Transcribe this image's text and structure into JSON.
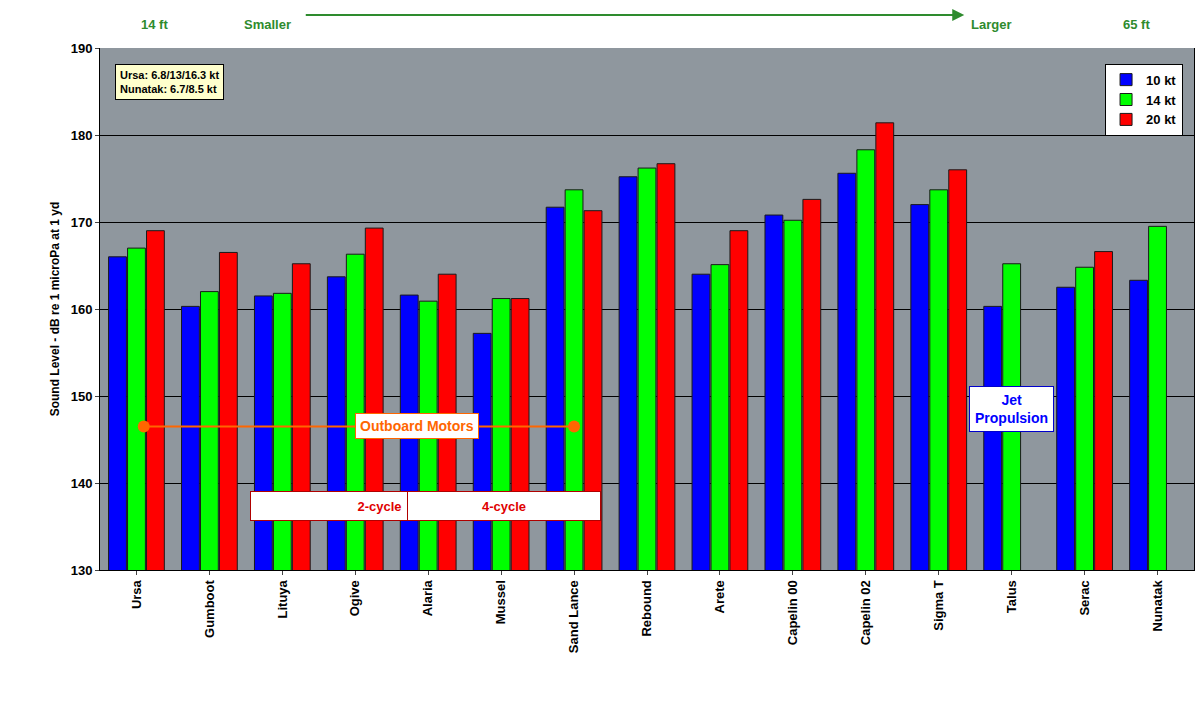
{
  "chart_data": {
    "type": "bar",
    "categories": [
      "Ursa",
      "Gumboot",
      "Lituya",
      "Ogive",
      "Alaria",
      "Mussel",
      "Sand Lance",
      "Rebound",
      "Arete",
      "Capelin 00",
      "Capelin 02",
      "Sigma T",
      "Talus",
      "Serac",
      "Nunatak"
    ],
    "series": [
      {
        "name": "10 kt",
        "color": "#0000ff",
        "values": [
          166,
          160.3,
          161.5,
          163.7,
          161.6,
          157.2,
          171.7,
          175.2,
          164,
          170.8,
          175.6,
          172,
          160.3,
          162.5,
          163.3
        ]
      },
      {
        "name": "14 kt",
        "color": "#00ff00",
        "values": [
          167,
          162,
          161.8,
          166.3,
          160.9,
          161.2,
          173.7,
          176.2,
          165.1,
          170.2,
          178.3,
          173.7,
          165.2,
          164.8,
          169.5
        ]
      },
      {
        "name": "20 kt",
        "color": "#ff0000",
        "values": [
          169,
          166.5,
          165.2,
          169.3,
          164,
          161.2,
          171.3,
          176.7,
          169,
          172.6,
          181.4,
          176,
          null,
          166.6,
          null
        ]
      }
    ],
    "y_label": "Sound Level - dB re 1 microPa at 1 yd",
    "ylim": [
      130,
      190
    ],
    "yticks": [
      130,
      140,
      150,
      160,
      170,
      180,
      190
    ],
    "grid": true,
    "legend": "top right",
    "annotations": [
      "14 ft",
      "Smaller",
      "Larger",
      "65 ft",
      "Ursa: 6.8/13/16.3 kt",
      "Nunatak: 6.7/8.5 kt",
      "Outboard Motors",
      "2-cycle",
      "4-cycle",
      "Jet Propulsion"
    ]
  }
}
